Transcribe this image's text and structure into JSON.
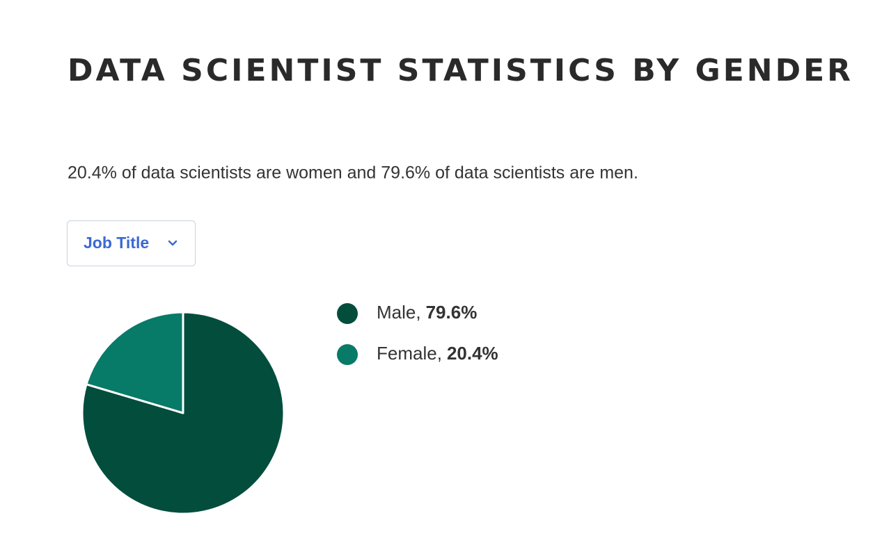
{
  "title": "DATA SCIENTIST STATISTICS BY GENDER",
  "description": "20.4% of data scientists are women and 79.6% of data scientists are men.",
  "dropdown": {
    "label": "Job Title"
  },
  "chart_data": {
    "type": "pie",
    "categories": [
      "Male",
      "Female"
    ],
    "values": [
      79.6,
      20.4
    ],
    "value_labels": [
      "79.6%",
      "20.4%"
    ],
    "legend_separator": ",",
    "colors": [
      "#034d3d",
      "#087a68"
    ],
    "start_angle": "top",
    "direction": "clockwise",
    "legend_position": "right"
  }
}
